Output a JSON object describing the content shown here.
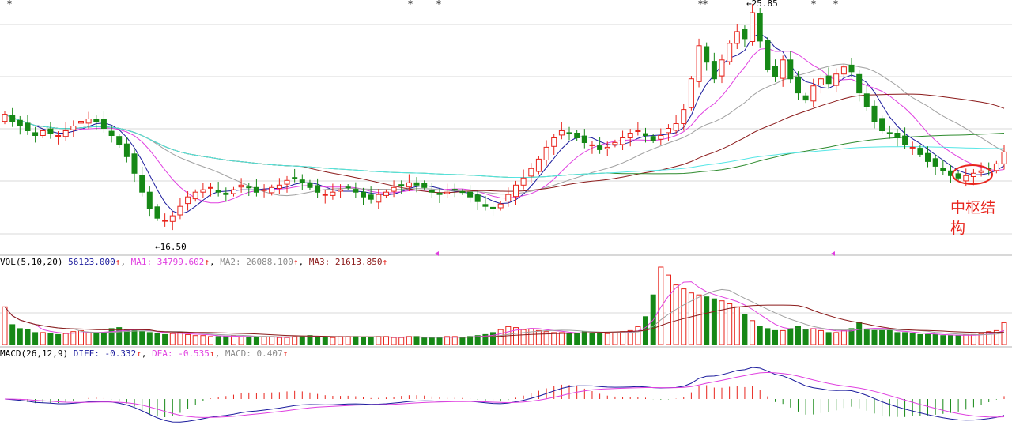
{
  "colors": {
    "up": "#e8241c",
    "down": "#168816",
    "ma5": "#1a1a9c",
    "ma10": "#e040e0",
    "ma20": "#a0a0a0",
    "ma60": "#8b1a1a",
    "ma120": "#2e8b2e",
    "ma250": "#55e6e6",
    "grid": "#d9d9d9",
    "diff": "#1a1a9c",
    "dea": "#e040e0",
    "annotation": "#e8241c"
  },
  "price_panel": {
    "high_label": "25.85",
    "low_label": "16.50",
    "annotation_line1": "中枢结",
    "annotation_line2": "构"
  },
  "vol_legend": {
    "title": "VOL(5,10,20)",
    "v": "56123.000",
    "ma1": "MA1: 34799.602",
    "ma2": "MA2: 26088.100",
    "ma3": "MA3: 21613.850",
    "arrow": "↑"
  },
  "macd_legend": {
    "title": "MACD(26,12,9)",
    "diff": "DIFF: -0.332",
    "dea": "DEA: -0.535",
    "macd": "MACD: 0.407",
    "arrow": "↑"
  },
  "chart_data": [
    {
      "type": "candlestick",
      "name": "price",
      "y_range": [
        15.5,
        26
      ],
      "annotations": [
        "25.85",
        "16.50",
        "中枢结构"
      ],
      "close": [
        21.3,
        21.0,
        20.8,
        20.6,
        20.4,
        20.6,
        20.5,
        20.4,
        20.6,
        20.8,
        21.0,
        21.1,
        21.0,
        20.7,
        20.4,
        20.0,
        19.5,
        18.8,
        18.0,
        17.3,
        16.9,
        16.8,
        17.0,
        17.4,
        17.8,
        18.0,
        18.1,
        18.2,
        18.0,
        17.9,
        18.1,
        18.3,
        18.2,
        18.0,
        18.1,
        18.2,
        18.3,
        18.5,
        18.6,
        18.4,
        18.2,
        18.0,
        17.9,
        18.0,
        18.1,
        18.2,
        18.0,
        17.8,
        17.7,
        17.9,
        18.0,
        18.2,
        18.3,
        18.4,
        18.3,
        18.2,
        18.0,
        17.9,
        18.0,
        18.1,
        18.0,
        17.8,
        17.6,
        17.4,
        17.3,
        17.5,
        17.9,
        18.3,
        18.6,
        19.0,
        19.4,
        19.9,
        20.3,
        20.6,
        20.5,
        20.3,
        20.1,
        20.0,
        19.8,
        19.9,
        20.1,
        20.3,
        20.5,
        20.6,
        20.4,
        20.2,
        20.4,
        20.7,
        20.9,
        21.5,
        22.8,
        24.2,
        23.5,
        22.8,
        23.6,
        24.3,
        24.8,
        24.5,
        25.6,
        24.4,
        23.2,
        22.9,
        23.6,
        22.8,
        22.2,
        21.9,
        22.5,
        22.8,
        22.6,
        23.0,
        23.3,
        23.1,
        22.2,
        21.6,
        21.0,
        20.6,
        20.5,
        20.3,
        20.0,
        19.9,
        19.6,
        19.3,
        19.1,
        18.9,
        18.7,
        18.6,
        18.7,
        18.8,
        18.9,
        19.0,
        19.2,
        19.7
      ],
      "ma_series": [
        "MA5",
        "MA10",
        "MA20",
        "MA60",
        "MA120",
        "MA250"
      ]
    },
    {
      "type": "bar",
      "name": "VOL",
      "series": [
        {
          "name": "VOL",
          "values": [
            38000,
            20000,
            16000,
            15000,
            12000,
            12000,
            11000,
            10000,
            11000,
            13000,
            14000,
            12000,
            11000,
            12000,
            16000,
            17000,
            15000,
            14000,
            13000,
            12000,
            11000,
            10000,
            11000,
            12000,
            10000,
            9000,
            9000,
            8000,
            8000,
            8000,
            9000,
            8000,
            7000,
            7000,
            8000,
            8000,
            7000,
            7000,
            8000,
            8000,
            9000,
            8000,
            7000,
            7000,
            8000,
            8000,
            8000,
            7000,
            7000,
            8000,
            8000,
            7000,
            7000,
            8000,
            8000,
            7000,
            7000,
            7000,
            8000,
            8000,
            7000,
            8000,
            9000,
            10000,
            12000,
            15000,
            18000,
            17000,
            15000,
            16000,
            14000,
            13000,
            12000,
            12000,
            11000,
            11000,
            13000,
            12000,
            12000,
            11000,
            12000,
            13000,
            14000,
            18000,
            28000,
            50000,
            78000,
            70000,
            60000,
            56000,
            52000,
            50000,
            48000,
            46000,
            44000,
            41000,
            38000,
            30000,
            24000,
            18000,
            16000,
            14000,
            14000,
            16000,
            18000,
            15000,
            16000,
            14000,
            12000,
            12000,
            14000,
            16000,
            22000,
            15000,
            14000,
            14000,
            14000,
            12000,
            12000,
            11000,
            10000,
            10000,
            10000,
            9000,
            9000,
            9000,
            10000,
            10000,
            11000,
            13000,
            14000,
            22000
          ]
        },
        {
          "name": "MA1",
          "values": [
            34799.602
          ]
        },
        {
          "name": "MA2",
          "values": [
            26088.1
          ]
        },
        {
          "name": "MA3",
          "values": [
            21613.85
          ]
        }
      ]
    },
    {
      "type": "bar",
      "name": "MACD",
      "series": [
        {
          "name": "DIFF",
          "values": [
            -0.332
          ]
        },
        {
          "name": "DEA",
          "values": [
            -0.535
          ]
        },
        {
          "name": "MACD",
          "values": [
            0.407
          ]
        }
      ]
    }
  ]
}
